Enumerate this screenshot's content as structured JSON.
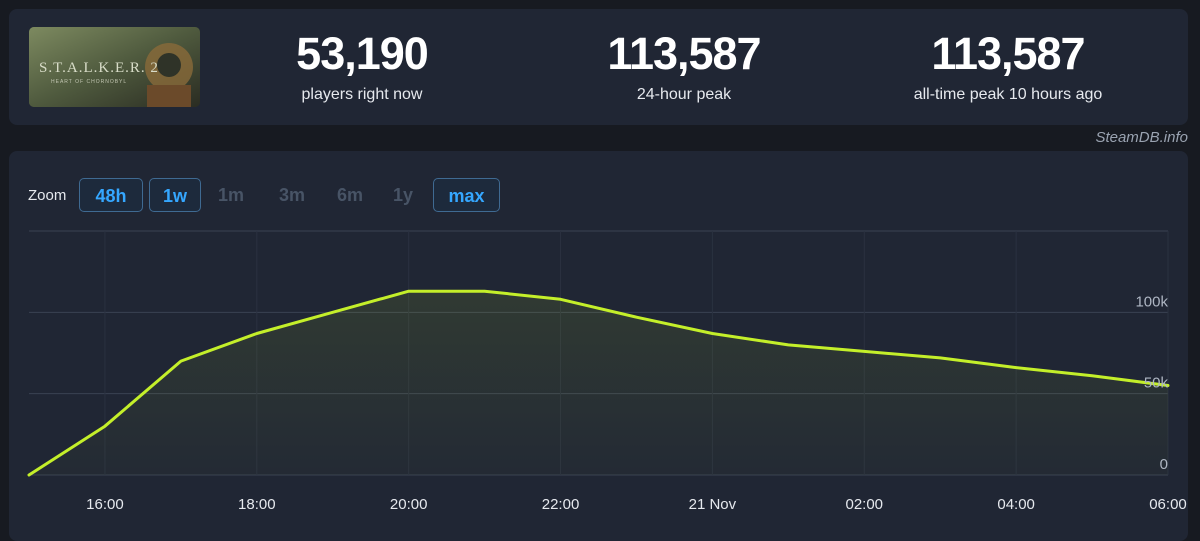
{
  "game": {
    "title_art": "S.T.A.L.K.E.R. 2",
    "subtitle_art": "HEART OF CHORNOBYL"
  },
  "stats": [
    {
      "value": "53,190",
      "label": "players right now"
    },
    {
      "value": "113,587",
      "label": "24-hour peak"
    },
    {
      "value": "113,587",
      "label": "all-time peak 10 hours ago"
    }
  ],
  "credit": "SteamDB.info",
  "zoom": {
    "label": "Zoom",
    "buttons": [
      {
        "label": "48h",
        "active": true
      },
      {
        "label": "1w",
        "active": true
      },
      {
        "label": "1m",
        "active": false
      },
      {
        "label": "3m",
        "active": false
      },
      {
        "label": "6m",
        "active": false
      },
      {
        "label": "1y",
        "active": false
      },
      {
        "label": "max",
        "active": true
      }
    ]
  },
  "colors": {
    "line": "#c4ef2a",
    "accent": "#35a7ff",
    "panel": "#202634",
    "background": "#171a21"
  },
  "chart_data": {
    "type": "line",
    "x_labels": [
      "16:00",
      "18:00",
      "20:00",
      "22:00",
      "21 Nov",
      "02:00",
      "04:00",
      "06:00"
    ],
    "x_hours": [
      -8,
      -6,
      -4,
      -2,
      0,
      2,
      4,
      6
    ],
    "series": [
      {
        "name": "",
        "x": [
          -9,
          -8,
          -7,
          -6,
          -5,
          -4,
          -3,
          -2,
          -1,
          0,
          1,
          2,
          3,
          4,
          5,
          6
        ],
        "y": [
          0,
          30000,
          70000,
          87000,
          100000,
          113000,
          113000,
          108000,
          97000,
          87000,
          80000,
          76000,
          72000,
          66000,
          61000,
          55000
        ]
      }
    ],
    "y_ticks": [
      {
        "value": 0,
        "label": "0"
      },
      {
        "value": 50000,
        "label": "50k"
      },
      {
        "value": 100000,
        "label": "100k"
      }
    ],
    "ylim": [
      0,
      150000
    ],
    "xlim": [
      -9,
      6
    ],
    "grid": true
  }
}
